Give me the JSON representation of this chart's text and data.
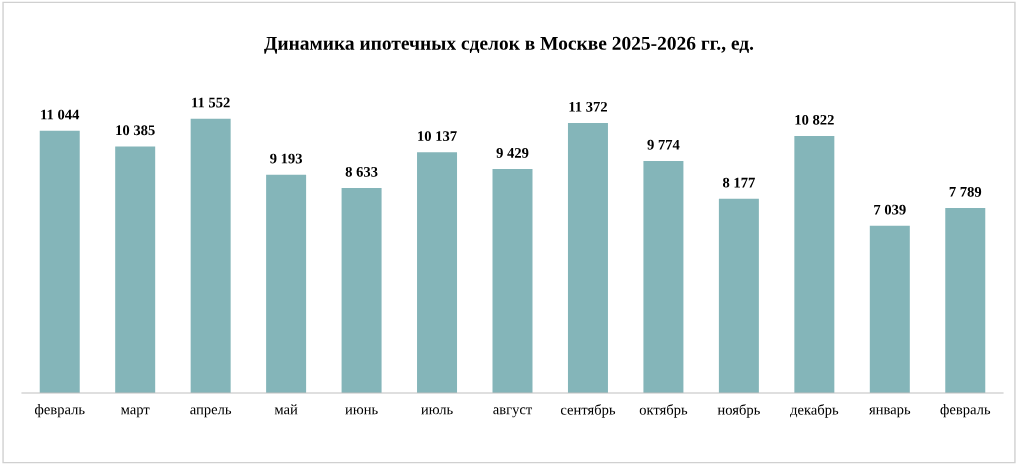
{
  "chart_data": {
    "type": "bar",
    "title": "Динамика ипотечных сделок в Москве 2025-2026 гг., ед.",
    "categories": [
      "февраль",
      "март",
      "апрель",
      "май",
      "июнь",
      "июль",
      "август",
      "сентябрь",
      "октябрь",
      "ноябрь",
      "декабрь",
      "январь",
      "февраль"
    ],
    "values": [
      11044,
      10385,
      11552,
      9193,
      8633,
      10137,
      9429,
      11372,
      9774,
      8177,
      10822,
      7039,
      7789
    ],
    "value_labels": [
      "11 044",
      "10 385",
      "11 552",
      "9 193",
      "8 633",
      "10 137",
      "9 429",
      "11 372",
      "9 774",
      "8 177",
      "10 822",
      "7 039",
      "7 789"
    ],
    "color": "#84b5b9",
    "grid": false,
    "legend": false,
    "tick_labels": "x"
  }
}
